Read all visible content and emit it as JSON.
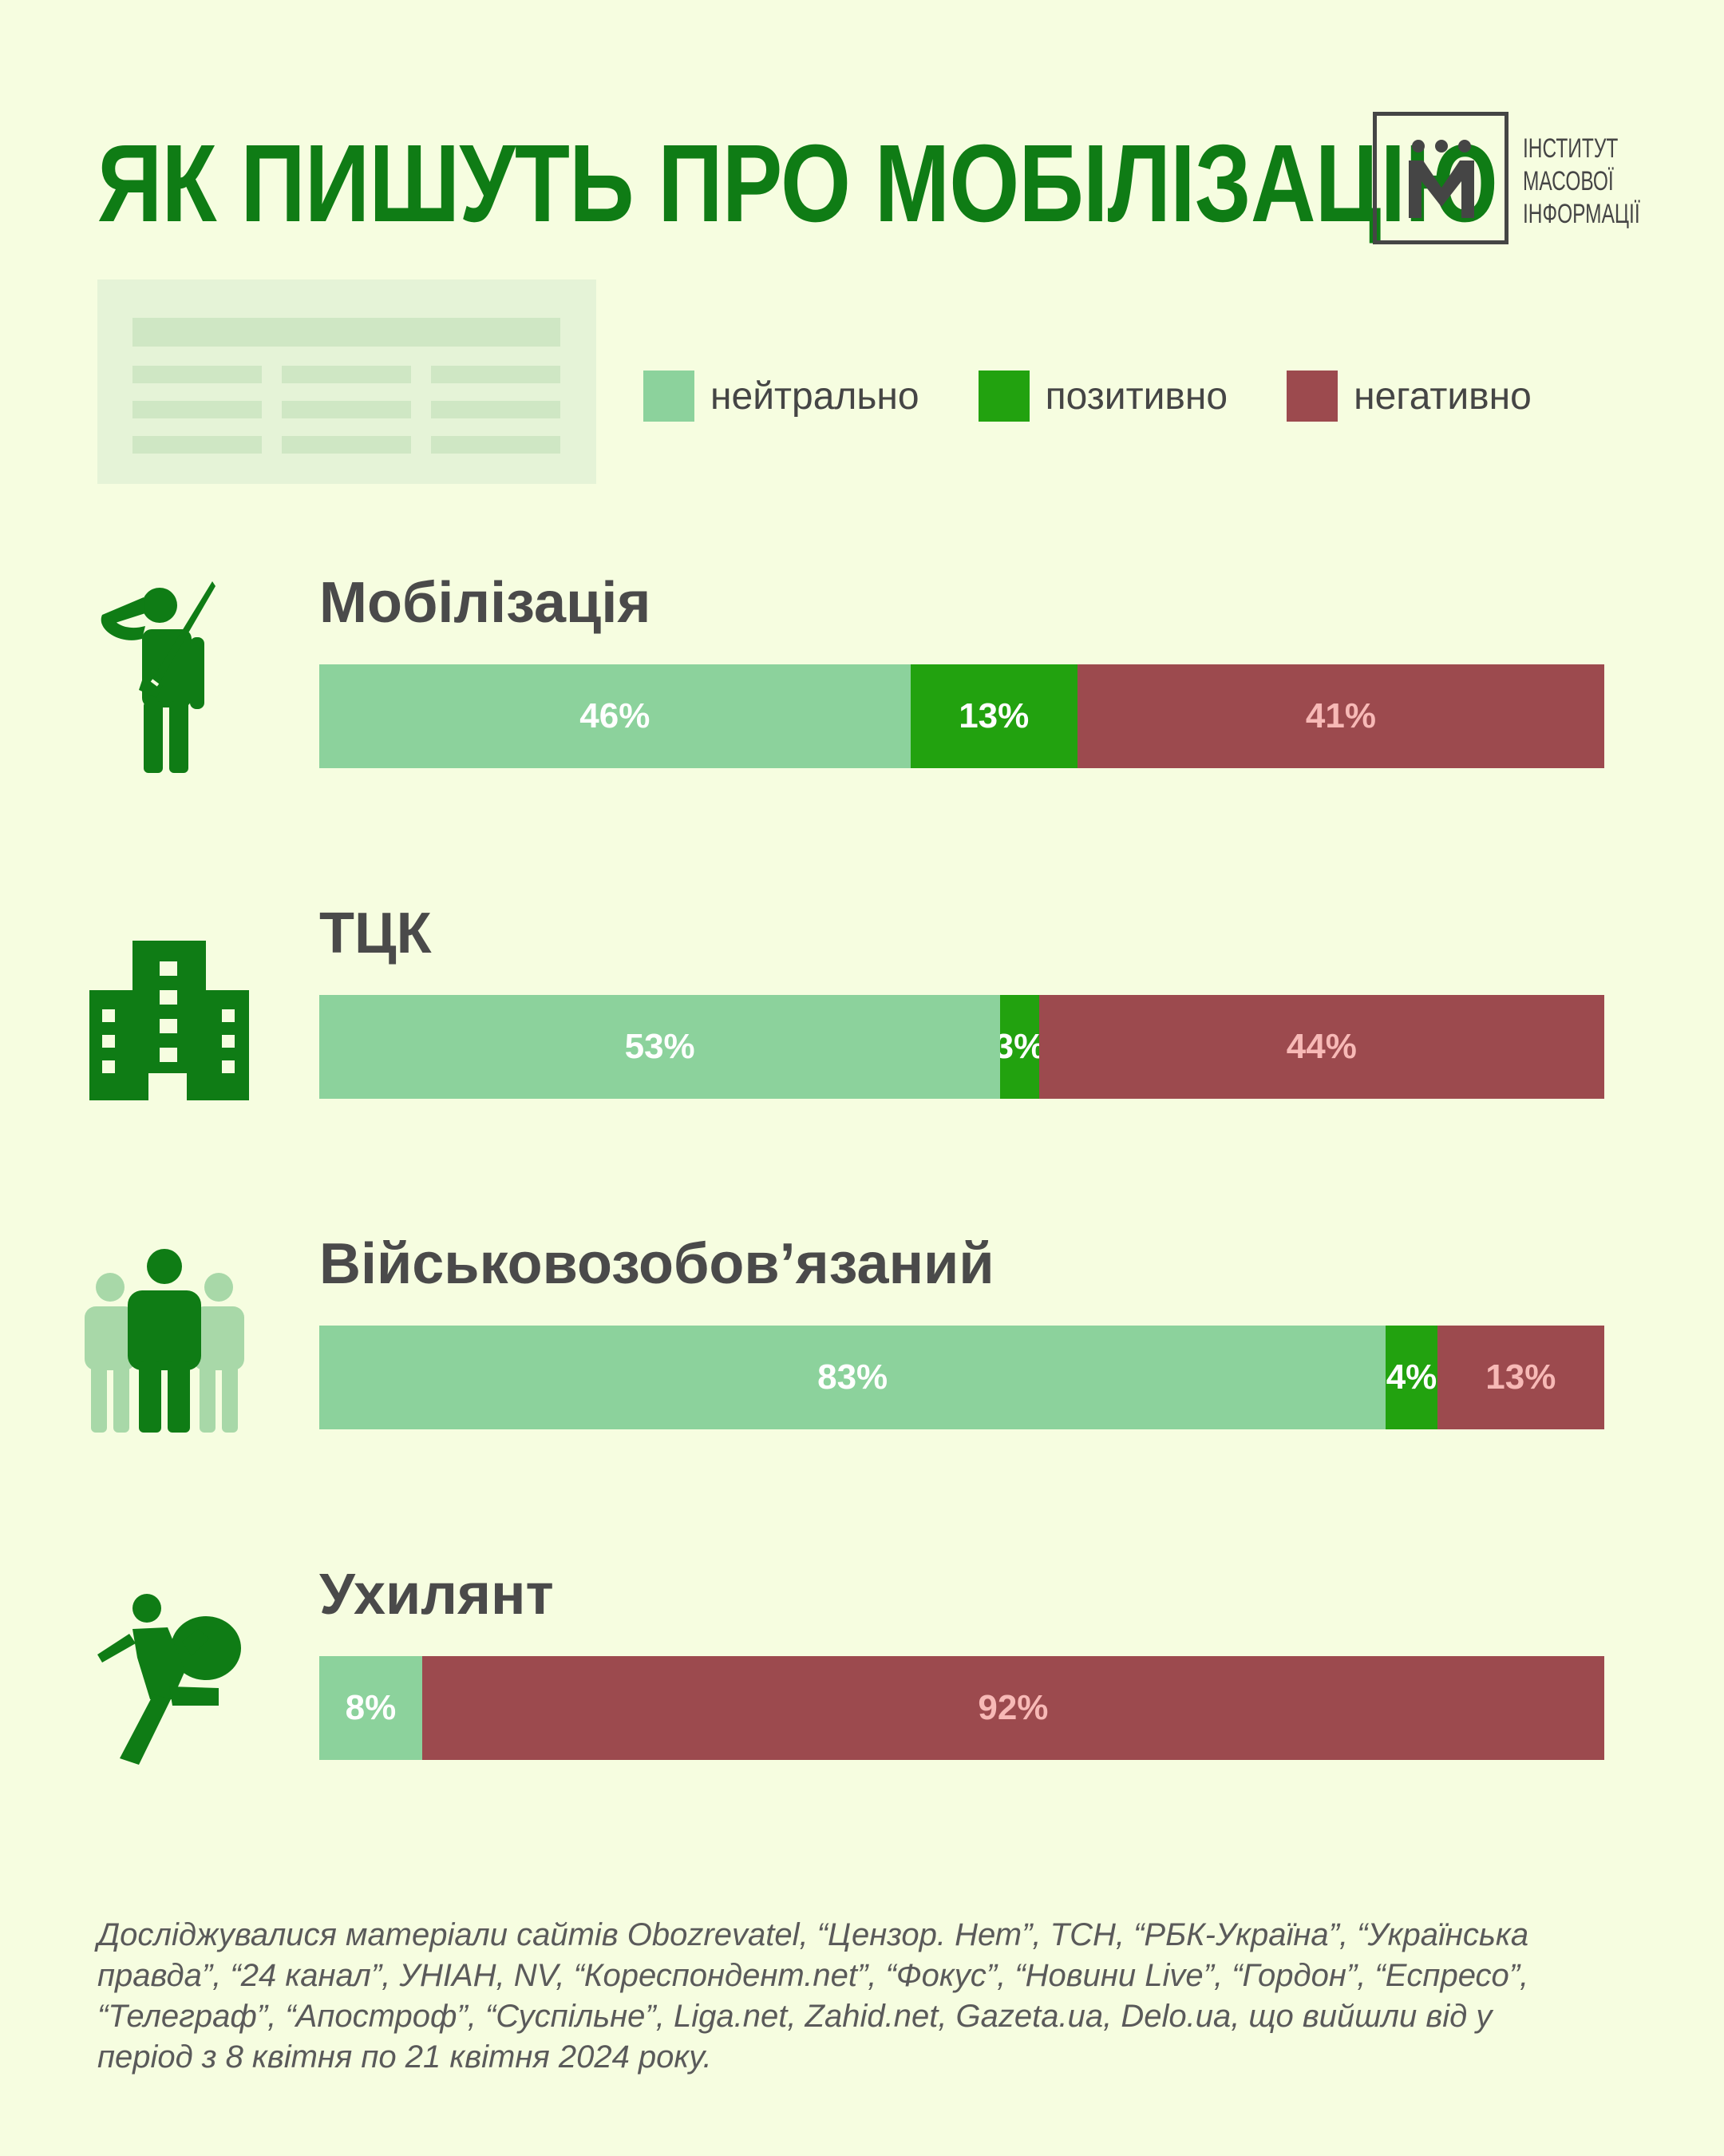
{
  "title": "ЯК ПИШУТЬ ПРО МОБІЛІЗАЦІЮ",
  "logo": {
    "mark": "М",
    "lines": [
      "ІНСТИТУТ",
      "МАСОВОЇ",
      "ІНФОРМАЦІЇ"
    ]
  },
  "colors": {
    "background": "#f6fde0",
    "title": "#0f7c15",
    "neutral": "#8cd29c",
    "positive": "#22a20f",
    "negative": "#9c4a4e",
    "neutral_text": "#ffffff",
    "positive_text": "#ffffff",
    "negative_text": "#f7b9b6",
    "label_text": "#4a4a4a",
    "icon": "#0f7c15",
    "icon_light": "#a8d8a8"
  },
  "chart_data": {
    "type": "bar",
    "orientation": "horizontal",
    "stacked": true,
    "normalized": true,
    "value_unit": "%",
    "legend_position": "top-right",
    "categories": [
      "Мобілізація",
      "ТЦК",
      "Військовозобов’язаний",
      "Ухилянт"
    ],
    "category_icons": [
      "saluting-soldier-icon",
      "building-icon",
      "people-group-icon",
      "fleeing-person-with-bag-icon"
    ],
    "series": [
      {
        "name": "нейтрально",
        "color": "#8cd29c",
        "values": [
          46,
          53,
          83,
          8
        ]
      },
      {
        "name": "позитивно",
        "color": "#22a20f",
        "values": [
          13,
          3,
          4,
          0
        ]
      },
      {
        "name": "негативно",
        "color": "#9c4a4e",
        "values": [
          41,
          44,
          13,
          92
        ]
      }
    ],
    "xlim": [
      0,
      100
    ],
    "grid": false
  },
  "footnote": "Досліджувалися матеріали сайтів Obozrevatel, “Цензор. Нет”, ТСН, “РБК-Україна”, “Українська правда”, “24 канал”, УНІАН, NV, “Кореспондент.net”, “Фокус”, “Новини Live”, “Гордон”, “Еспресо”, “Телеграф”, “Апостроф”, “Суспільне”, Liga.net, Zahid.net, Gazeta.ua, Delo.ua, що вийшли від у період з 8 квітня по 21 квітня 2024 року."
}
